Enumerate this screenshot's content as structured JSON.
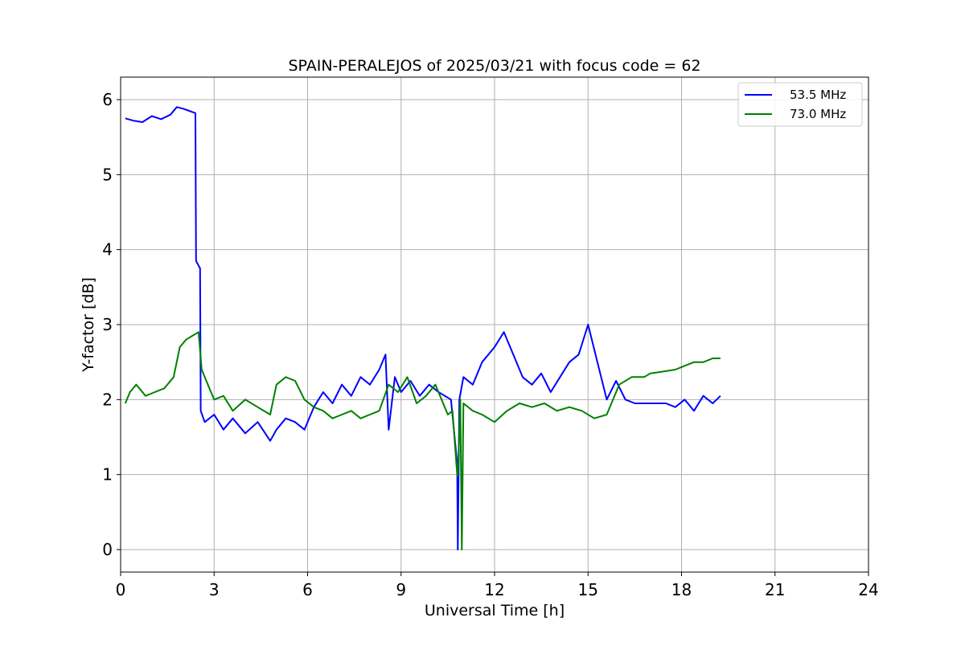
{
  "chart_data": {
    "type": "line",
    "title": "SPAIN-PERALEJOS of 2025/03/21 with focus code = 62",
    "xlabel": "Universal Time [h]",
    "ylabel": "Y-factor [dB]",
    "xlim": [
      0,
      24
    ],
    "ylim": [
      -0.3,
      6.3
    ],
    "xticks": [
      0,
      3,
      6,
      9,
      12,
      15,
      18,
      21,
      24
    ],
    "xtick_labels": [
      "0",
      "3",
      "6",
      "9",
      "12",
      "15",
      "18",
      "21",
      "24"
    ],
    "yticks": [
      0,
      1,
      2,
      3,
      4,
      5,
      6
    ],
    "ytick_labels": [
      "0",
      "1",
      "2",
      "3",
      "4",
      "5",
      "6"
    ],
    "grid": true,
    "legend_position": "top-right",
    "series": [
      {
        "name": "53.5 MHz",
        "color": "#0000ff",
        "x": [
          0.15,
          0.4,
          0.7,
          1.0,
          1.3,
          1.6,
          1.8,
          2.0,
          2.2,
          2.4,
          2.42,
          2.55,
          2.57,
          2.7,
          3.0,
          3.3,
          3.6,
          4.0,
          4.4,
          4.8,
          5.0,
          5.3,
          5.6,
          5.9,
          6.2,
          6.5,
          6.8,
          7.1,
          7.4,
          7.7,
          8.0,
          8.3,
          8.5,
          8.6,
          8.8,
          9.0,
          9.3,
          9.6,
          9.9,
          10.2,
          10.6,
          10.8,
          10.82,
          10.87,
          11.0,
          11.3,
          11.6,
          12.0,
          12.3,
          12.6,
          12.9,
          13.2,
          13.5,
          13.8,
          14.1,
          14.4,
          14.7,
          15.0,
          15.3,
          15.6,
          15.9,
          16.2,
          16.5,
          17.0,
          17.5,
          17.8,
          18.1,
          18.4,
          18.7,
          19.0,
          19.25
        ],
        "y": [
          5.75,
          5.72,
          5.7,
          5.78,
          5.74,
          5.8,
          5.9,
          5.88,
          5.85,
          5.82,
          3.85,
          3.75,
          1.85,
          1.7,
          1.8,
          1.6,
          1.75,
          1.55,
          1.7,
          1.45,
          1.6,
          1.75,
          1.7,
          1.6,
          1.9,
          2.1,
          1.95,
          2.2,
          2.05,
          2.3,
          2.2,
          2.4,
          2.6,
          1.6,
          2.3,
          2.1,
          2.25,
          2.05,
          2.2,
          2.1,
          2.0,
          1.15,
          0.0,
          2.0,
          2.3,
          2.2,
          2.5,
          2.7,
          2.9,
          2.6,
          2.3,
          2.2,
          2.35,
          2.1,
          2.3,
          2.5,
          2.6,
          3.0,
          2.5,
          2.0,
          2.25,
          2.0,
          1.95,
          1.95,
          1.95,
          1.9,
          2.0,
          1.85,
          2.05,
          1.95,
          2.05
        ]
      },
      {
        "name": "73.0 MHz",
        "color": "#008000",
        "x": [
          0.15,
          0.3,
          0.5,
          0.8,
          1.1,
          1.4,
          1.7,
          1.9,
          2.1,
          2.3,
          2.5,
          2.6,
          2.8,
          3.0,
          3.3,
          3.6,
          4.0,
          4.4,
          4.8,
          5.0,
          5.3,
          5.6,
          5.9,
          6.2,
          6.5,
          6.8,
          7.1,
          7.4,
          7.7,
          8.0,
          8.3,
          8.6,
          8.9,
          9.2,
          9.5,
          9.8,
          10.1,
          10.5,
          10.65,
          10.8,
          10.82,
          10.9,
          10.95,
          11.0,
          11.3,
          11.6,
          12.0,
          12.4,
          12.8,
          13.2,
          13.6,
          14.0,
          14.4,
          14.8,
          15.2,
          15.6,
          16.0,
          16.4,
          16.8,
          17.0,
          17.5,
          17.8,
          18.1,
          18.4,
          18.7,
          19.0,
          19.25
        ],
        "y": [
          1.95,
          2.1,
          2.2,
          2.05,
          2.1,
          2.15,
          2.3,
          2.7,
          2.8,
          2.85,
          2.9,
          2.4,
          2.2,
          2.0,
          2.05,
          1.85,
          2.0,
          1.9,
          1.8,
          2.2,
          2.3,
          2.25,
          2.0,
          1.9,
          1.85,
          1.75,
          1.8,
          1.85,
          1.75,
          1.8,
          1.85,
          2.2,
          2.1,
          2.3,
          1.95,
          2.05,
          2.2,
          1.8,
          1.85,
          1.0,
          0.98,
          2.0,
          0.0,
          1.95,
          1.85,
          1.8,
          1.7,
          1.85,
          1.95,
          1.9,
          1.95,
          1.85,
          1.9,
          1.85,
          1.75,
          1.8,
          2.2,
          2.3,
          2.3,
          2.35,
          2.38,
          2.4,
          2.45,
          2.5,
          2.5,
          2.55,
          2.55
        ]
      }
    ]
  }
}
